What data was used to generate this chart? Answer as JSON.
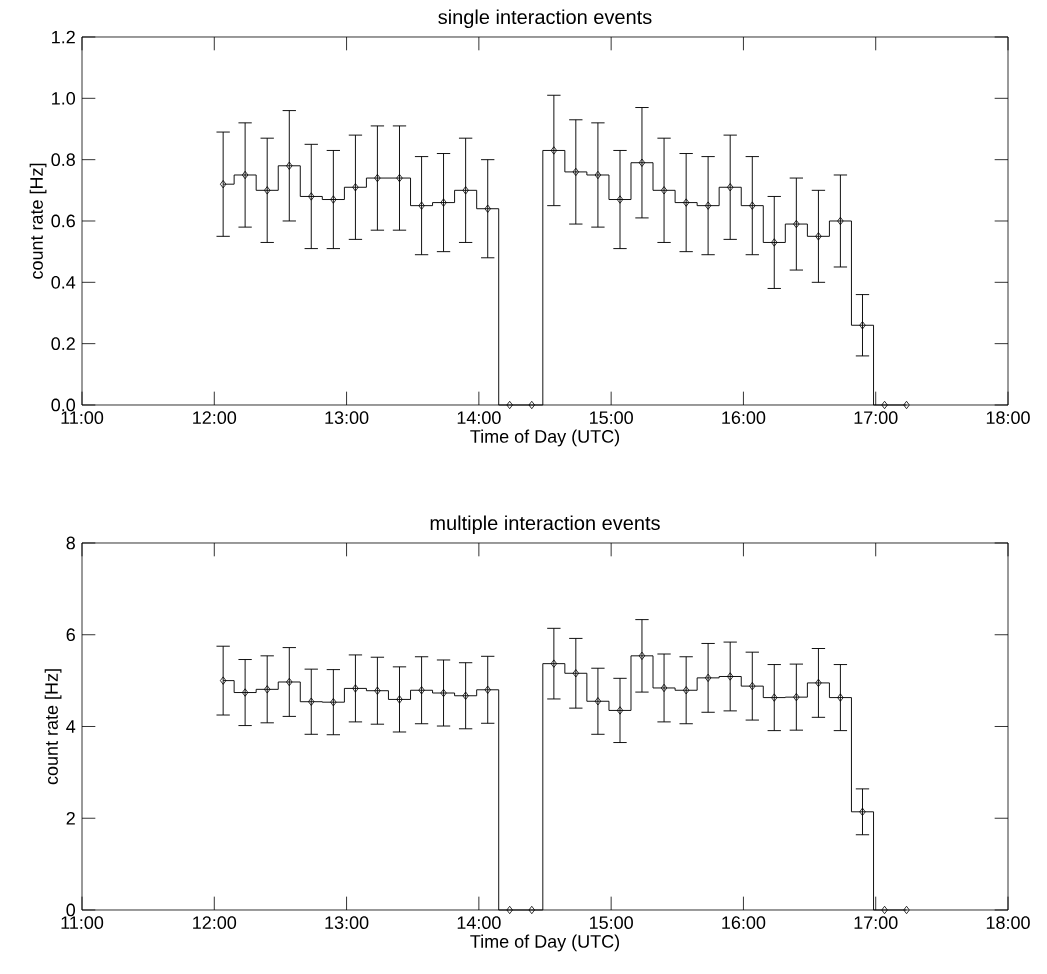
{
  "chart_data": [
    {
      "type": "step",
      "title": "single interaction events",
      "xlabel": "Time of Day (UTC)",
      "ylabel": "count rate [Hz]",
      "color": "#000000",
      "marker": "diamond",
      "x": [
        12.067,
        12.233,
        12.4,
        12.567,
        12.733,
        12.9,
        13.067,
        13.233,
        13.4,
        13.567,
        13.733,
        13.9,
        14.067,
        14.233,
        14.4,
        14.567,
        14.733,
        14.9,
        15.067,
        15.233,
        15.4,
        15.567,
        15.733,
        15.9,
        16.067,
        16.233,
        16.4,
        16.567,
        16.733,
        16.9,
        17.067,
        17.233
      ],
      "values": [
        0.72,
        0.75,
        0.7,
        0.78,
        0.68,
        0.67,
        0.71,
        0.74,
        0.74,
        0.65,
        0.66,
        0.7,
        0.64,
        0,
        0,
        0.83,
        0.76,
        0.75,
        0.67,
        0.79,
        0.7,
        0.66,
        0.65,
        0.71,
        0.65,
        0.53,
        0.59,
        0.55,
        0.6,
        0.26,
        0,
        0
      ],
      "errors": [
        0.17,
        0.17,
        0.17,
        0.18,
        0.17,
        0.16,
        0.17,
        0.17,
        0.17,
        0.16,
        0.16,
        0.17,
        0.16,
        null,
        null,
        0.18,
        0.17,
        0.17,
        0.16,
        0.18,
        0.17,
        0.16,
        0.16,
        0.17,
        0.16,
        0.15,
        0.15,
        0.15,
        0.15,
        0.1,
        null,
        null
      ],
      "xlim": [
        11,
        18
      ],
      "xticks": [
        {
          "value": 11,
          "label": "11:00"
        },
        {
          "value": 12,
          "label": "12:00"
        },
        {
          "value": 13,
          "label": "13:00"
        },
        {
          "value": 14,
          "label": "14:00"
        },
        {
          "value": 15,
          "label": "15:00"
        },
        {
          "value": 16,
          "label": "16:00"
        },
        {
          "value": 17,
          "label": "17:00"
        },
        {
          "value": 18,
          "label": "18:00"
        }
      ],
      "ylim": [
        0,
        1.2
      ],
      "yticks": [
        {
          "value": 0,
          "label": "0.0"
        },
        {
          "value": 0.2,
          "label": "0.2"
        },
        {
          "value": 0.4,
          "label": "0.4"
        },
        {
          "value": 0.6,
          "label": "0.6"
        },
        {
          "value": 0.8,
          "label": "0.8"
        },
        {
          "value": 1.0,
          "label": "1.0"
        },
        {
          "value": 1.2,
          "label": "1.2"
        }
      ]
    },
    {
      "type": "step",
      "title": "multiple interaction events",
      "xlabel": "Time of Day (UTC)",
      "ylabel": "count rate [Hz]",
      "color": "#000000",
      "marker": "diamond",
      "x": [
        12.067,
        12.233,
        12.4,
        12.567,
        12.733,
        12.9,
        13.067,
        13.233,
        13.4,
        13.567,
        13.733,
        13.9,
        14.067,
        14.233,
        14.4,
        14.567,
        14.733,
        14.9,
        15.067,
        15.233,
        15.4,
        15.567,
        15.733,
        15.9,
        16.067,
        16.233,
        16.4,
        16.567,
        16.733,
        16.9,
        17.067,
        17.233
      ],
      "values": [
        5.0,
        4.74,
        4.81,
        4.97,
        4.54,
        4.53,
        4.83,
        4.78,
        4.59,
        4.79,
        4.73,
        4.67,
        4.8,
        0,
        0,
        5.37,
        5.16,
        4.55,
        4.35,
        5.54,
        4.84,
        4.79,
        5.06,
        5.09,
        4.88,
        4.63,
        4.64,
        4.95,
        4.63,
        2.14,
        0,
        0
      ],
      "errors": [
        0.75,
        0.72,
        0.73,
        0.75,
        0.71,
        0.71,
        0.73,
        0.73,
        0.71,
        0.73,
        0.72,
        0.72,
        0.73,
        null,
        null,
        0.77,
        0.76,
        0.72,
        0.7,
        0.79,
        0.74,
        0.73,
        0.75,
        0.75,
        0.74,
        0.72,
        0.72,
        0.75,
        0.72,
        0.5,
        null,
        null
      ],
      "xlim": [
        11,
        18
      ],
      "xticks": [
        {
          "value": 11,
          "label": "11:00"
        },
        {
          "value": 12,
          "label": "12:00"
        },
        {
          "value": 13,
          "label": "13:00"
        },
        {
          "value": 14,
          "label": "14:00"
        },
        {
          "value": 15,
          "label": "15:00"
        },
        {
          "value": 16,
          "label": "16:00"
        },
        {
          "value": 17,
          "label": "17:00"
        },
        {
          "value": 18,
          "label": "18:00"
        }
      ],
      "ylim": [
        0,
        8
      ],
      "yticks": [
        0,
        2,
        4,
        6,
        8
      ]
    }
  ]
}
